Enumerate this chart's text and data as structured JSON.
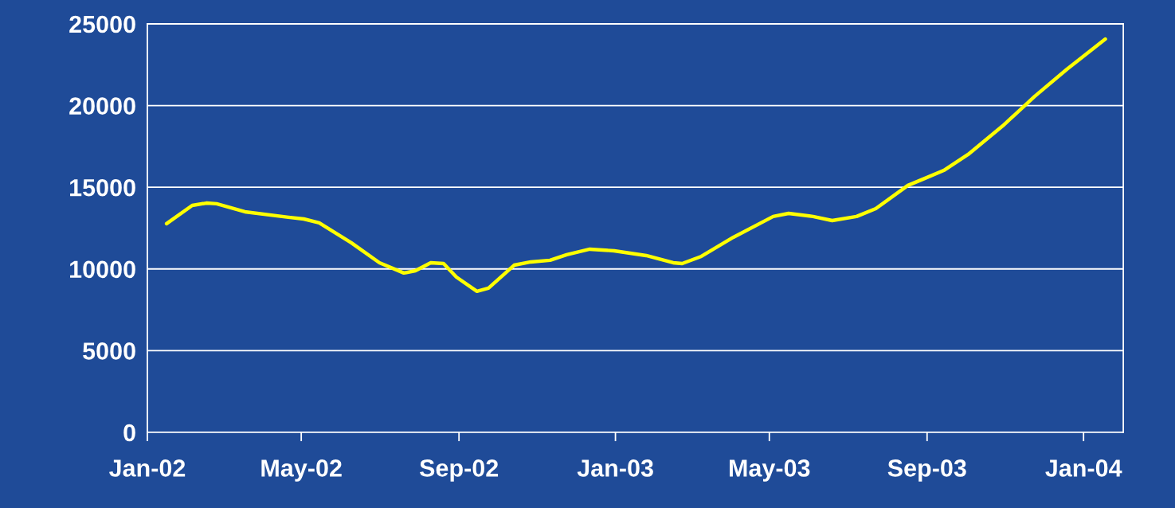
{
  "chart_data": {
    "type": "line",
    "x": [
      "2002-01-16",
      "2002-02-05",
      "2002-02-16",
      "2002-02-24",
      "2002-03-18",
      "2002-04-21",
      "2002-05-03",
      "2002-05-15",
      "2002-06-09",
      "2002-07-01",
      "2002-07-20",
      "2002-07-29",
      "2002-08-10",
      "2002-08-20",
      "2002-08-30",
      "2002-09-15",
      "2002-09-24",
      "2002-10-14",
      "2002-10-27",
      "2002-11-11",
      "2002-11-24",
      "2002-12-12",
      "2002-12-31",
      "2003-01-25",
      "2003-02-15",
      "2003-02-22",
      "2003-03-09",
      "2003-04-03",
      "2003-05-04",
      "2003-05-16",
      "2003-06-04",
      "2003-06-19",
      "2003-07-08",
      "2003-07-23",
      "2003-08-17",
      "2003-08-29",
      "2003-09-14",
      "2003-10-03",
      "2003-10-30",
      "2003-11-24",
      "2003-12-19",
      "2004-01-18"
    ],
    "series": [
      {
        "color": "#ffff00",
        "values": [
          12770,
          13890,
          14030,
          13990,
          13500,
          13160,
          13060,
          12820,
          11600,
          10380,
          9750,
          9890,
          10380,
          10330,
          9500,
          8630,
          8820,
          10230,
          10430,
          10530,
          10870,
          11210,
          11110,
          10820,
          10380,
          10330,
          10770,
          11940,
          13210,
          13400,
          13210,
          12960,
          13210,
          13690,
          15110,
          15500,
          16030,
          17010,
          18760,
          20570,
          22220,
          24070
        ]
      }
    ],
    "xlim": [
      "2002-01-01",
      "2004-02-01"
    ],
    "xticks": [
      {
        "value": "2002-01-01",
        "label": "Jan-02"
      },
      {
        "value": "2002-05-01",
        "label": "May-02"
      },
      {
        "value": "2002-09-01",
        "label": "Sep-02"
      },
      {
        "value": "2003-01-01",
        "label": "Jan-03"
      },
      {
        "value": "2003-05-01",
        "label": "May-03"
      },
      {
        "value": "2003-09-01",
        "label": "Sep-03"
      },
      {
        "value": "2004-01-01",
        "label": "Jan-04"
      }
    ],
    "ylim": [
      0,
      25000
    ],
    "yticks": [
      0,
      5000,
      10000,
      15000,
      20000,
      25000
    ],
    "grid": "y",
    "legend": false,
    "marker": "none",
    "line_style": "solid"
  }
}
